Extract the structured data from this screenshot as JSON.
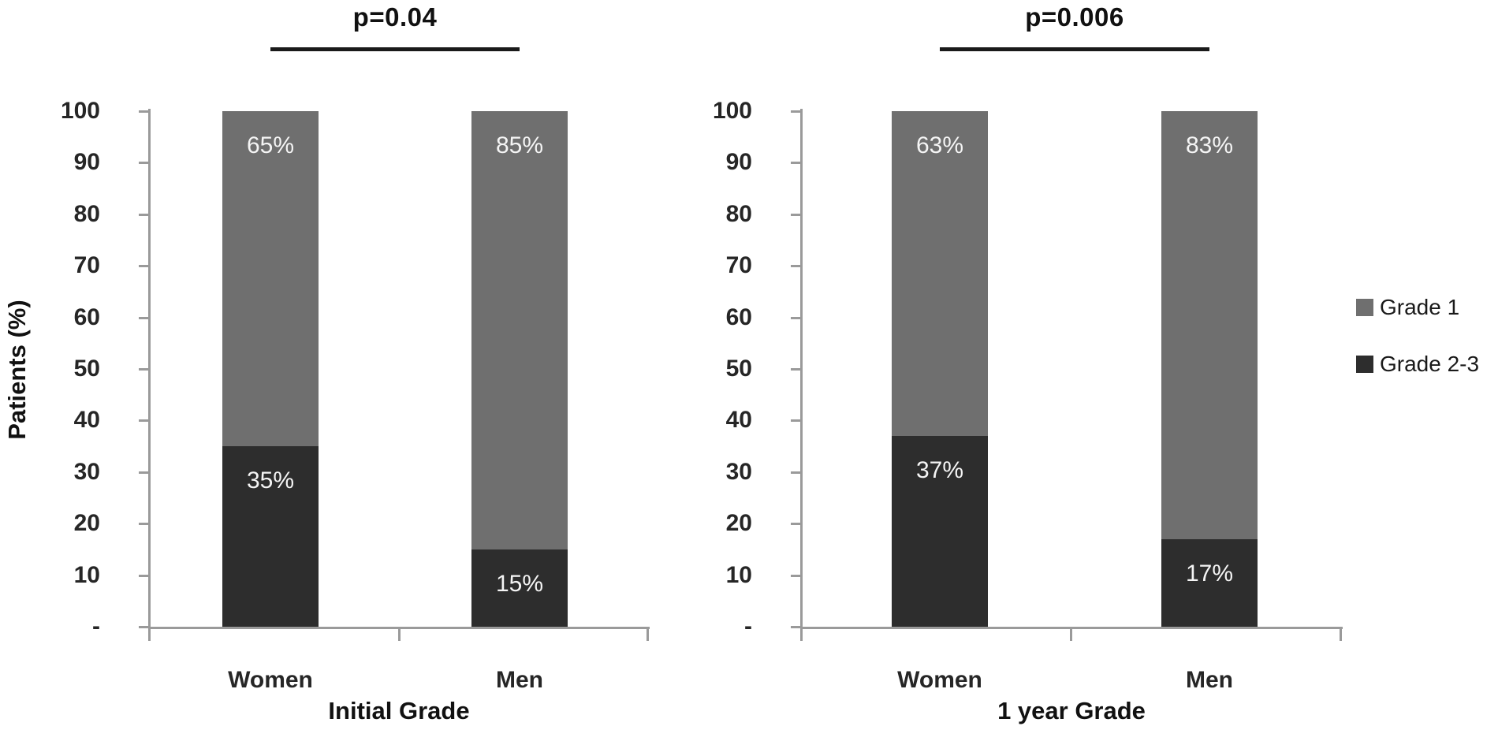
{
  "figure": {
    "y_axis_title": "Patients (%)",
    "legend": [
      {
        "label": "Grade 1",
        "color": "#6f6f6f"
      },
      {
        "label": "Grade 2-3",
        "color": "#2d2d2d"
      }
    ],
    "colors": {
      "grade1": "#6f6f6f",
      "grade23": "#2d2d2d",
      "axis": "#9a9a9a",
      "significance_line": "#1a1a1a",
      "bar_label_text": "#f5f5f5"
    }
  },
  "chart_data": [
    {
      "type": "bar",
      "stacked": true,
      "p_value": "p=0.04",
      "xlabel": "Initial Grade",
      "ylabel": "Patients (%)",
      "ylim": [
        0,
        100
      ],
      "grid": false,
      "legend_position": "right",
      "y_ticks": [
        "100",
        "90",
        "80",
        "70",
        "60",
        "50",
        "40",
        "30",
        "20",
        "10",
        "-"
      ],
      "categories": [
        "Women",
        "Men"
      ],
      "series": [
        {
          "name": "Grade 1",
          "color": "#6f6f6f",
          "values": [
            65,
            85
          ],
          "labels": [
            "65%",
            "85%"
          ]
        },
        {
          "name": "Grade 2-3",
          "color": "#2d2d2d",
          "values": [
            35,
            15
          ],
          "labels": [
            "35%",
            "15%"
          ]
        }
      ]
    },
    {
      "type": "bar",
      "stacked": true,
      "p_value": "p=0.006",
      "xlabel": "1 year Grade",
      "ylabel": "Patients (%)",
      "ylim": [
        0,
        100
      ],
      "grid": false,
      "legend_position": "right",
      "y_ticks": [
        "100",
        "90",
        "80",
        "70",
        "60",
        "50",
        "40",
        "30",
        "20",
        "10",
        "-"
      ],
      "categories": [
        "Women",
        "Men"
      ],
      "series": [
        {
          "name": "Grade 1",
          "color": "#6f6f6f",
          "values": [
            63,
            83
          ],
          "labels": [
            "63%",
            "83%"
          ]
        },
        {
          "name": "Grade 2-3",
          "color": "#2d2d2d",
          "values": [
            37,
            17
          ],
          "labels": [
            "37%",
            "17%"
          ]
        }
      ]
    }
  ]
}
